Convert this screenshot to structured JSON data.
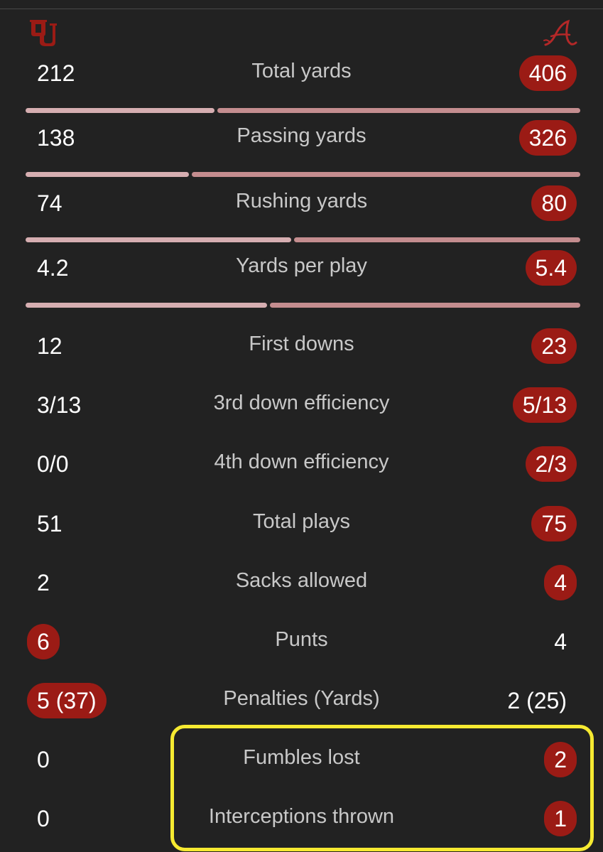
{
  "teams": {
    "left": {
      "name": "OU",
      "logo_icon": "oklahoma-ou-logo-icon"
    },
    "right": {
      "name": "A",
      "logo_icon": "alabama-a-logo-icon"
    }
  },
  "colors": {
    "background": "#222222",
    "leader_pill": "#9b1b15",
    "bar_left": "#d6aeb1",
    "bar_right": "#c48d8f",
    "highlight": "#f6ea31"
  },
  "stats": [
    {
      "label": "Total yards",
      "left": "212",
      "right": "406",
      "leader": "right",
      "bar": true,
      "left_share": 0.343
    },
    {
      "label": "Passing yards",
      "left": "138",
      "right": "326",
      "leader": "right",
      "bar": true,
      "left_share": 0.297
    },
    {
      "label": "Rushing yards",
      "left": "74",
      "right": "80",
      "leader": "right",
      "bar": true,
      "left_share": 0.481
    },
    {
      "label": "Yards per play",
      "left": "4.2",
      "right": "5.4",
      "leader": "right",
      "bar": true,
      "left_share": 0.438
    },
    {
      "label": "First downs",
      "left": "12",
      "right": "23",
      "leader": "right",
      "bar": false
    },
    {
      "label": "3rd down efficiency",
      "left": "3/13",
      "right": "5/13",
      "leader": "right",
      "bar": false
    },
    {
      "label": "4th down efficiency",
      "left": "0/0",
      "right": "2/3",
      "leader": "right",
      "bar": false
    },
    {
      "label": "Total plays",
      "left": "51",
      "right": "75",
      "leader": "right",
      "bar": false
    },
    {
      "label": "Sacks allowed",
      "left": "2",
      "right": "4",
      "leader": "right",
      "bar": false
    },
    {
      "label": "Punts",
      "left": "6",
      "right": "4",
      "leader": "left",
      "bar": false
    },
    {
      "label": "Penalties (Yards)",
      "left": "5 (37)",
      "right": "2 (25)",
      "leader": "left",
      "bar": false
    },
    {
      "label": "Fumbles lost",
      "left": "0",
      "right": "2",
      "leader": "right",
      "bar": false,
      "highlighted": true
    },
    {
      "label": "Interceptions thrown",
      "left": "0",
      "right": "1",
      "leader": "right",
      "bar": false,
      "highlighted": true
    }
  ]
}
